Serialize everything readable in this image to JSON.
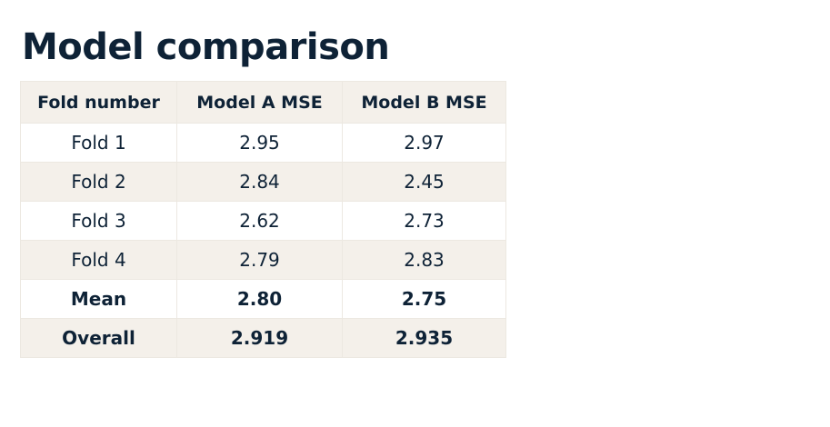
{
  "title": "Model comparison",
  "table": {
    "headers": [
      "Fold number",
      "Model A MSE",
      "Model B MSE"
    ],
    "rows": [
      [
        "Fold 1",
        "2.95",
        "2.97"
      ],
      [
        "Fold 2",
        "2.84",
        "2.45"
      ],
      [
        "Fold 3",
        "2.62",
        "2.73"
      ],
      [
        "Fold 4",
        "2.79",
        "2.83"
      ]
    ],
    "summary_rows": [
      [
        "Mean",
        "2.80",
        "2.75"
      ],
      [
        "Overall",
        "2.919",
        "2.935"
      ]
    ]
  }
}
